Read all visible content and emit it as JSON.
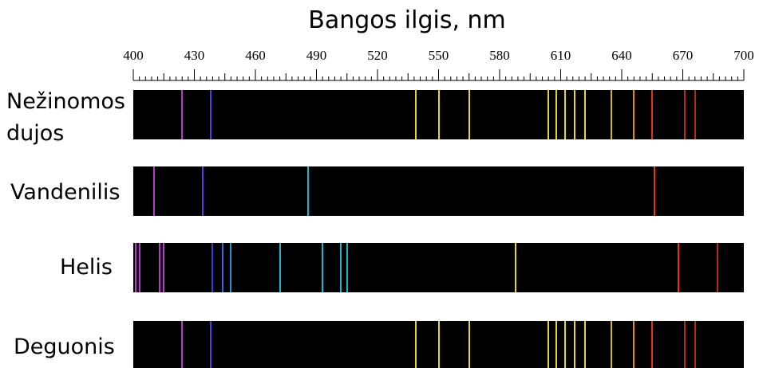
{
  "chart_data": {
    "type": "spectrum",
    "title": "Bangos ilgis, nm",
    "xlim": [
      400,
      700
    ],
    "ticks": [
      400,
      430,
      460,
      490,
      520,
      550,
      580,
      610,
      640,
      670,
      700
    ],
    "tick_labels": [
      "400",
      "430",
      "460",
      "490",
      "520",
      "550",
      "580",
      "610",
      "640",
      "670",
      "700"
    ],
    "rows": [
      {
        "name": "Nežinomos dujos",
        "name_lines": [
          "Nežinomos",
          "dujos"
        ],
        "lines": [
          {
            "wl": 424,
            "color": "#b43cc8"
          },
          {
            "wl": 438,
            "color": "#5a3ce6"
          },
          {
            "wl": 539,
            "color": "#e6d23c"
          },
          {
            "wl": 550,
            "color": "#e6d23c"
          },
          {
            "wl": 565,
            "color": "#e6d23c"
          },
          {
            "wl": 604,
            "color": "#e6d23c"
          },
          {
            "wl": 608,
            "color": "#e6d23c"
          },
          {
            "wl": 612,
            "color": "#e6d23c"
          },
          {
            "wl": 617,
            "color": "#e6d23c"
          },
          {
            "wl": 622,
            "color": "#e6d23c"
          },
          {
            "wl": 635,
            "color": "#d2b428"
          },
          {
            "wl": 646,
            "color": "#e68c1e"
          },
          {
            "wl": 655,
            "color": "#e6321e"
          },
          {
            "wl": 671,
            "color": "#b4281e"
          },
          {
            "wl": 676,
            "color": "#b4281e"
          }
        ]
      },
      {
        "name": "Vandenilis",
        "name_lines": [
          "Vandenilis"
        ],
        "lines": [
          {
            "wl": 410,
            "color": "#b43cc8"
          },
          {
            "wl": 434,
            "color": "#5a3ce6"
          },
          {
            "wl": 486,
            "color": "#1eb4c8"
          },
          {
            "wl": 656,
            "color": "#e6321e"
          }
        ]
      },
      {
        "name": "Helis",
        "name_lines": [
          "Helis"
        ],
        "lines": [
          {
            "wl": 401,
            "color": "#b43cc8"
          },
          {
            "wl": 403,
            "color": "#b43cc8"
          },
          {
            "wl": 413,
            "color": "#b43cc8"
          },
          {
            "wl": 415,
            "color": "#b43cc8"
          },
          {
            "wl": 439,
            "color": "#3c3cdc"
          },
          {
            "wl": 444,
            "color": "#3c64e6"
          },
          {
            "wl": 448,
            "color": "#1e96dc"
          },
          {
            "wl": 472,
            "color": "#1eb4c8"
          },
          {
            "wl": 493,
            "color": "#1eb4c8"
          },
          {
            "wl": 502,
            "color": "#1eb4c8"
          },
          {
            "wl": 505,
            "color": "#1eb4c8"
          },
          {
            "wl": 588,
            "color": "#e6d23c"
          },
          {
            "wl": 668,
            "color": "#e6321e"
          },
          {
            "wl": 687,
            "color": "#b4281e"
          }
        ]
      },
      {
        "name": "Deguonis",
        "name_lines": [
          "Deguonis"
        ],
        "lines": [
          {
            "wl": 424,
            "color": "#b43cc8"
          },
          {
            "wl": 438,
            "color": "#5a3ce6"
          },
          {
            "wl": 539,
            "color": "#e6d23c"
          },
          {
            "wl": 550,
            "color": "#e6d23c"
          },
          {
            "wl": 565,
            "color": "#e6d23c"
          },
          {
            "wl": 604,
            "color": "#e6d23c"
          },
          {
            "wl": 608,
            "color": "#e6d23c"
          },
          {
            "wl": 612,
            "color": "#e6d23c"
          },
          {
            "wl": 617,
            "color": "#e6d23c"
          },
          {
            "wl": 622,
            "color": "#e6d23c"
          },
          {
            "wl": 635,
            "color": "#d2b428"
          },
          {
            "wl": 646,
            "color": "#e68c1e"
          },
          {
            "wl": 655,
            "color": "#e6321e"
          },
          {
            "wl": 671,
            "color": "#b4281e"
          },
          {
            "wl": 676,
            "color": "#b4281e"
          }
        ]
      }
    ]
  }
}
